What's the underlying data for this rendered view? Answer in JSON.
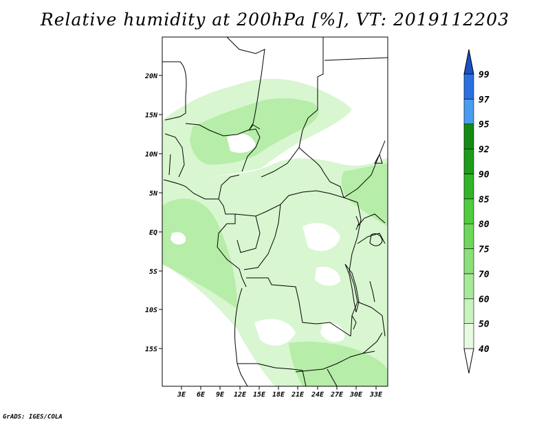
{
  "title": "Relative humidity at 200hPa [%], VT: 2019112203",
  "footer": "GrADS: IGES/COLA",
  "map": {
    "lat_labels": [
      "20N",
      "15N",
      "10N",
      "5N",
      "EQ",
      "5S",
      "10S",
      "15S"
    ],
    "lon_labels": [
      "3E",
      "6E",
      "9E",
      "12E",
      "15E",
      "18E",
      "21E",
      "24E",
      "27E",
      "30E",
      "33E"
    ],
    "colors": {
      "light": "#d8f6d0",
      "medium": "#b6eda8",
      "border": "#000000"
    }
  },
  "colorbar": {
    "levels": [
      "40",
      "50",
      "60",
      "70",
      "75",
      "80",
      "85",
      "90",
      "92",
      "95",
      "97",
      "99"
    ],
    "colors": [
      "#ffffff",
      "#e6fae0",
      "#c8f2be",
      "#a8e89a",
      "#8ce07a",
      "#6ed85c",
      "#50cc40",
      "#32b428",
      "#1e9c1a",
      "#148a12",
      "#4a9cf0",
      "#2a70e0",
      "#1a50c8"
    ]
  }
}
